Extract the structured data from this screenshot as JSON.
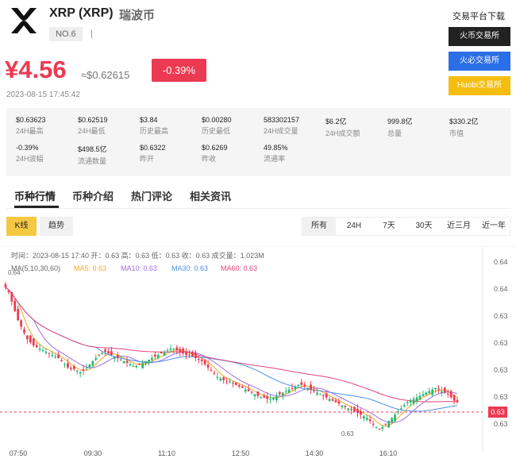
{
  "coin": {
    "name": "XRP (XRP)",
    "cn_name": "瑞波币",
    "rank": "NO.6",
    "rank_sep": "|",
    "price": "¥4.56",
    "usd_price": "≈$0.62615",
    "change": "-0.39%",
    "timestamp": "2023-08-15 17:45:42",
    "up_color": "#2bb673",
    "down_color": "#ec3a52"
  },
  "download": {
    "title": "交易平台下载",
    "buttons": [
      "火币交易所",
      "火必交易所",
      "Huobi交易所"
    ]
  },
  "stats": [
    {
      "value": "$0.63623",
      "label": "24H最高"
    },
    {
      "value": "$0.62519",
      "label": "24H最低"
    },
    {
      "value": "$3.84",
      "label": "历史最高"
    },
    {
      "value": "$0.00280",
      "label": "历史最低"
    },
    {
      "value": "583302157",
      "label": "24H成交量"
    },
    {
      "value": "$6.2亿",
      "label": "24H成交额"
    },
    {
      "value": "999.8亿",
      "label": "总量"
    },
    {
      "value": "$330.2亿",
      "label": "市值"
    },
    {
      "value": "-0.39%",
      "label": "24H波幅"
    },
    {
      "value": "$498.5亿",
      "label": "流通数量"
    },
    {
      "value": "$0.6322",
      "label": "昨开"
    },
    {
      "value": "$0.6269",
      "label": "昨收"
    },
    {
      "value": "49.85%",
      "label": "流通率"
    }
  ],
  "tabs": [
    "币种行情",
    "币种介绍",
    "热门评论",
    "相关资讯"
  ],
  "chart_type_buttons": [
    "K线",
    "趋势"
  ],
  "range_buttons": [
    "所有",
    "24H",
    "7天",
    "30天",
    "近三月",
    "近一年"
  ],
  "chart_info": {
    "ohlc": "时间：2023-08-15 17:40    开：0.63    高：0.63    低：0.63    收：0.63    成交量：1.023M",
    "ma_prefix": "MA(5,10,30,60)",
    "ma5": "MA5: 0.63",
    "ma10": "MA10: 0.63",
    "ma30": "MA30: 0.63",
    "ma60": "MA60: 0.63",
    "high_mark": "0.64",
    "low_mark": "0.63",
    "current": "0.63"
  },
  "chart_data": {
    "type": "candlestick",
    "x_ticks": [
      "07:50",
      "09:30",
      "11:10",
      "12:50",
      "14:30",
      "16:10"
    ],
    "y_ticks": [
      "0.64",
      "0.64",
      "0.63",
      "0.63",
      "0.63",
      "0.63",
      "0.63"
    ],
    "current_price": 0.63,
    "series_colors": {
      "MA5": "#f5a623",
      "MA10": "#a06ee0",
      "MA30": "#4a8fe7",
      "MA60": "#e0457b"
    },
    "close_shape": [
      0.95,
      0.92,
      0.86,
      0.8,
      0.74,
      0.7,
      0.66,
      0.62,
      0.6,
      0.58,
      0.57,
      0.56,
      0.55,
      0.54,
      0.53,
      0.52,
      0.51,
      0.5,
      0.48,
      0.46,
      0.44,
      0.43,
      0.43,
      0.42,
      0.41,
      0.42,
      0.44,
      0.46,
      0.48,
      0.5,
      0.52,
      0.53,
      0.54,
      0.53,
      0.52,
      0.51,
      0.5,
      0.49,
      0.48,
      0.47,
      0.46,
      0.45,
      0.45,
      0.46,
      0.47,
      0.48,
      0.49,
      0.5,
      0.51,
      0.52,
      0.53,
      0.54,
      0.55,
      0.56,
      0.56,
      0.55,
      0.54,
      0.53,
      0.52,
      0.52,
      0.51,
      0.5,
      0.49,
      0.48,
      0.46,
      0.44,
      0.42,
      0.4,
      0.38,
      0.37,
      0.36,
      0.35,
      0.35,
      0.34,
      0.33,
      0.32,
      0.31,
      0.3,
      0.29,
      0.28,
      0.27,
      0.26,
      0.25,
      0.25,
      0.24,
      0.24,
      0.25,
      0.26,
      0.27,
      0.28,
      0.29,
      0.3,
      0.31,
      0.32,
      0.33,
      0.33,
      0.32,
      0.31,
      0.3,
      0.29,
      0.28,
      0.27,
      0.26,
      0.25,
      0.24,
      0.23,
      0.22,
      0.21,
      0.2,
      0.19,
      0.18,
      0.17,
      0.16,
      0.15,
      0.14,
      0.13,
      0.12,
      0.1,
      0.08,
      0.06,
      0.05,
      0.06,
      0.08,
      0.1,
      0.12,
      0.14,
      0.16,
      0.18,
      0.2,
      0.22,
      0.23,
      0.24,
      0.25,
      0.26,
      0.27,
      0.28,
      0.29,
      0.3,
      0.31,
      0.3,
      0.29,
      0.28,
      0.27,
      0.25,
      0.23,
      0.22
    ]
  }
}
